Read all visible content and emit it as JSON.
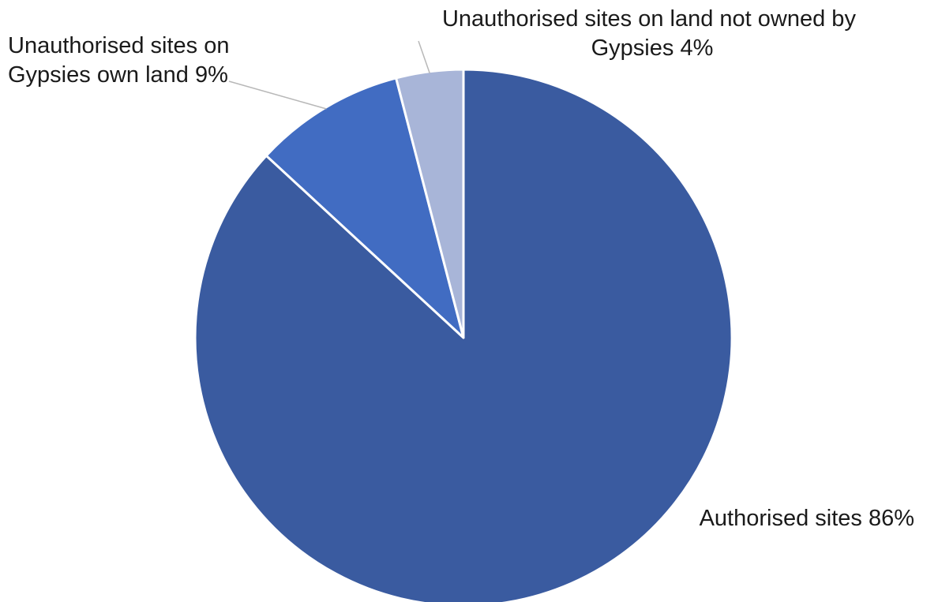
{
  "chart_data": {
    "type": "pie",
    "title": "",
    "categories": [
      "Authorised sites",
      "Unauthorised sites on Gypsies own land",
      "Unauthorised sites on land not owned by Gypsies"
    ],
    "values": [
      86,
      9,
      4
    ],
    "unit": "%",
    "colors": [
      "#3A5BA0",
      "#416CC2",
      "#A8B5D8"
    ],
    "start_angle_deg": 0,
    "direction": "clockwise",
    "labels": [
      {
        "lines": [
          "Authorised sites 86%"
        ]
      },
      {
        "lines": [
          "Unauthorised sites on",
          "Gypsies own land 9%"
        ]
      },
      {
        "lines": [
          "Unauthorised sites on land not owned by",
          "Gypsies 4%"
        ]
      }
    ],
    "legend": "none"
  }
}
